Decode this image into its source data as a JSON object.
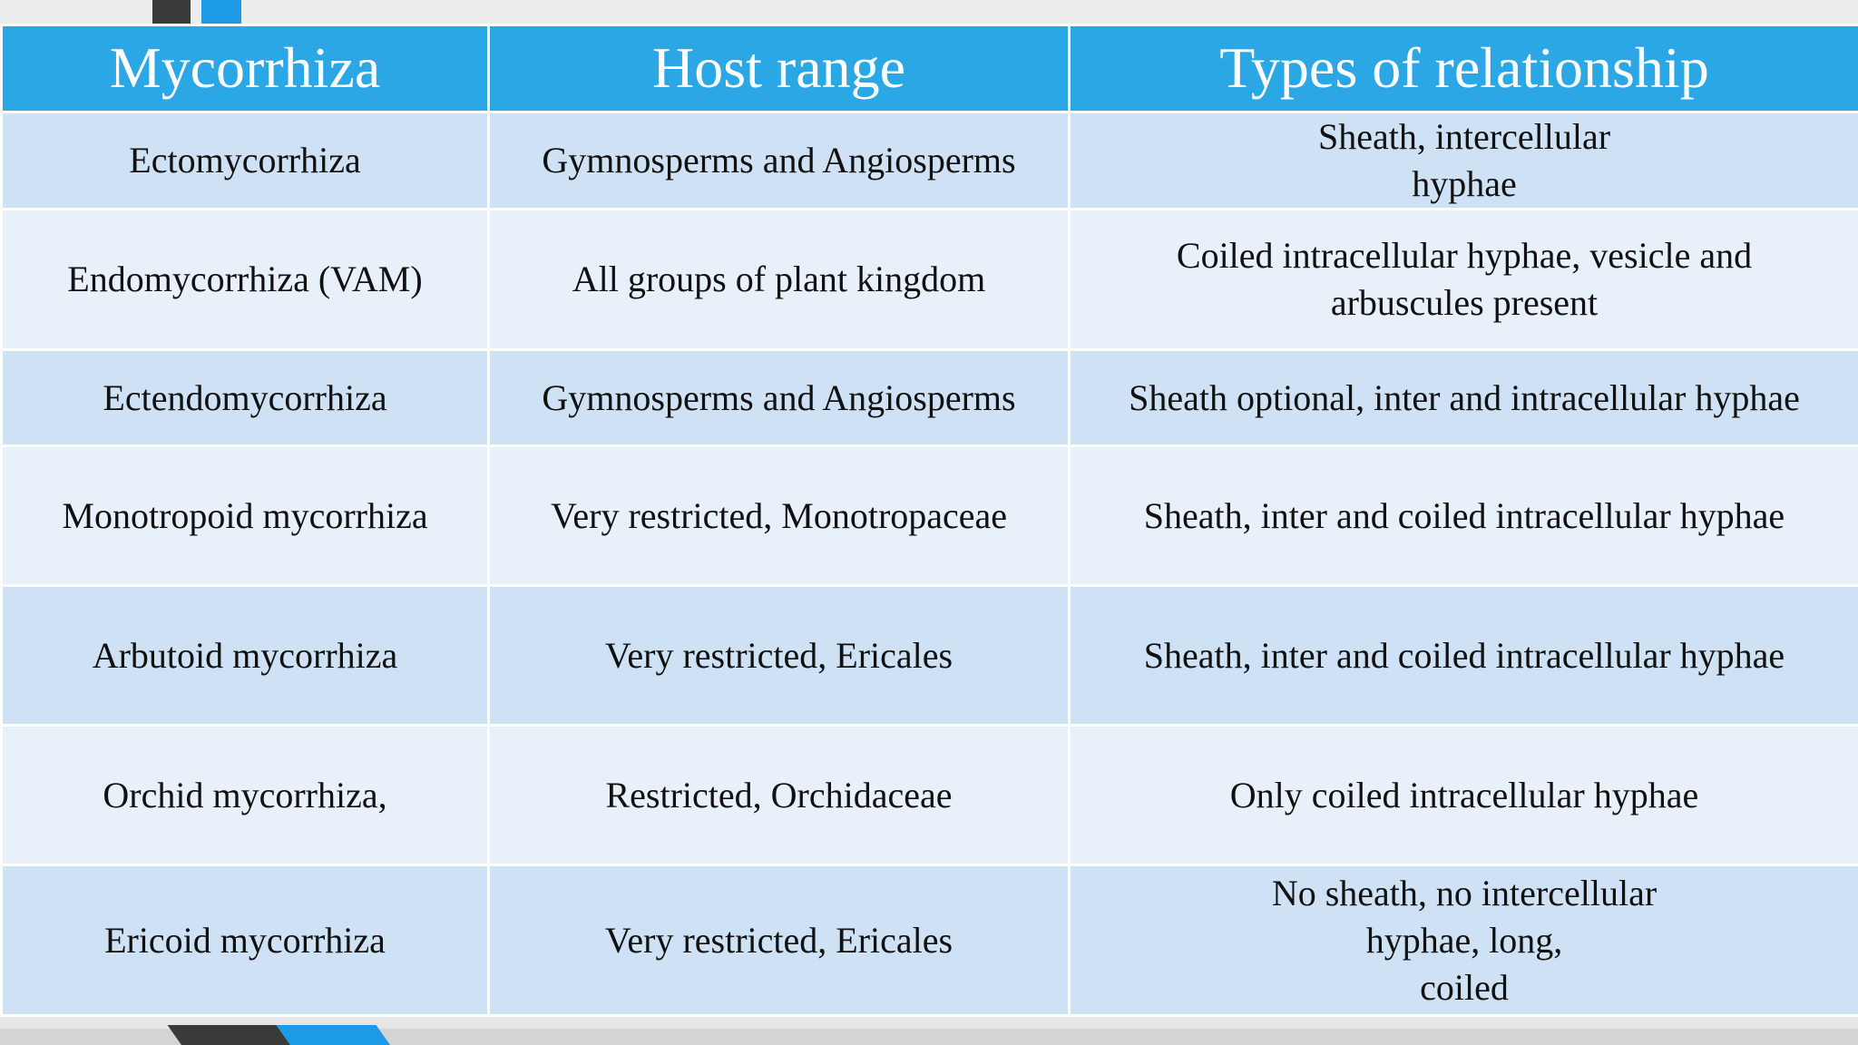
{
  "table": {
    "headers": [
      "Mycorrhiza",
      "Host range",
      "Types of relationship"
    ],
    "rows": [
      {
        "mycorrhiza": "Ectomycorrhiza",
        "host_range": "Gymnosperms and Angiosperms",
        "relationship_lines": [
          "Sheath, intercellular",
          "hyphae"
        ]
      },
      {
        "mycorrhiza": "Endomycorrhiza (VAM)",
        "host_range": "All groups of plant kingdom",
        "relationship_lines": [
          "Coiled intracellular hyphae, vesicle and",
          "arbuscules present"
        ]
      },
      {
        "mycorrhiza": "Ectendomycorrhiza",
        "host_range": "Gymnosperms and Angiosperms",
        "relationship_lines": [
          "Sheath optional, inter and intracellular hyphae"
        ]
      },
      {
        "mycorrhiza": "Monotropoid mycorrhiza",
        "host_range": "Very restricted, Monotropaceae",
        "relationship_lines": [
          "Sheath, inter and coiled intracellular hyphae"
        ]
      },
      {
        "mycorrhiza": "Arbutoid mycorrhiza",
        "host_range": "Very restricted, Ericales",
        "relationship_lines": [
          "Sheath, inter and coiled intracellular hyphae"
        ]
      },
      {
        "mycorrhiza": "Orchid mycorrhiza,",
        "host_range": "Restricted, Orchidaceae",
        "relationship_lines": [
          "Only coiled intracellular hyphae"
        ]
      },
      {
        "mycorrhiza": "Ericoid mycorrhiza",
        "host_range": "Very restricted, Ericales",
        "relationship_lines": [
          "No sheath, no intercellular",
          "hyphae, long,",
          "coiled"
        ]
      }
    ]
  },
  "colors": {
    "header_bg": "#2ba7e6",
    "row_odd_bg": "#cfe2f5",
    "row_even_bg": "#e8f0f9",
    "accent_blue": "#1c9ae6",
    "accent_dark": "#3a3a3a"
  }
}
